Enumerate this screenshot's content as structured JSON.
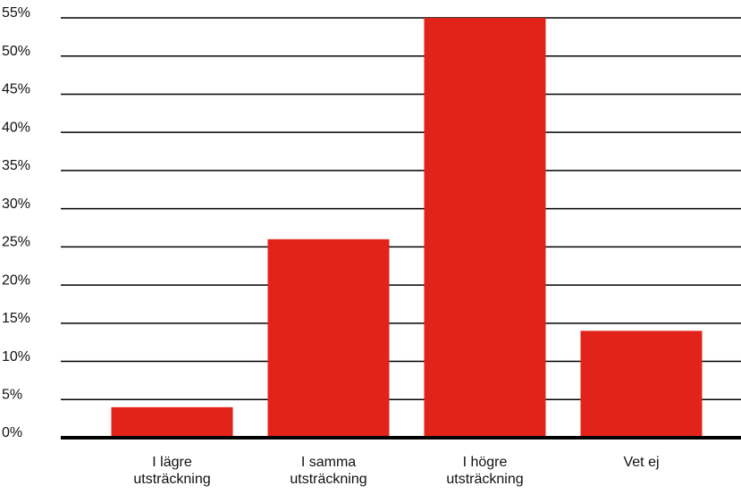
{
  "chart_data": {
    "type": "bar",
    "categories": [
      "I lägre utsträckning",
      "I samma utsträckning",
      "I högre utsträckning",
      "Vet ej"
    ],
    "values": [
      4,
      26,
      55,
      14
    ],
    "color": "#e2231a",
    "ylim": [
      0,
      55
    ],
    "yticks": [
      {
        "value": 0,
        "label": "0%"
      },
      {
        "value": 5,
        "label": "5%"
      },
      {
        "value": 10,
        "label": "10%"
      },
      {
        "value": 15,
        "label": "15%"
      },
      {
        "value": 20,
        "label": "20%"
      },
      {
        "value": 25,
        "label": "25%"
      },
      {
        "value": 30,
        "label": "30%"
      },
      {
        "value": 35,
        "label": "35%"
      },
      {
        "value": 40,
        "label": "40%"
      },
      {
        "value": 45,
        "label": "45%"
      },
      {
        "value": 50,
        "label": "50%"
      },
      {
        "value": 55,
        "label": "55%"
      }
    ],
    "grid": true
  }
}
